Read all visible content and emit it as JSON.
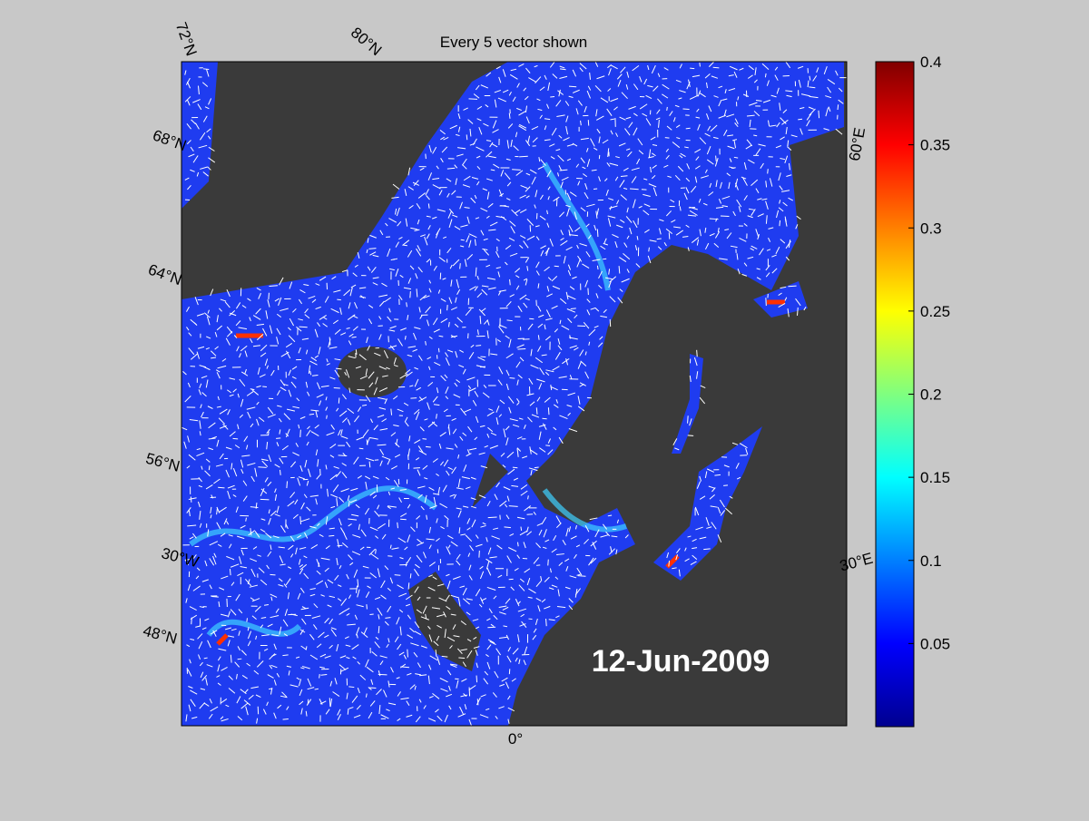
{
  "title": "Every 5 vector shown",
  "date_label": "12-Jun-2009",
  "map_labels": [
    "72°N",
    "80°N",
    "68°N",
    "64°N",
    "56°N",
    "30°W",
    "48°N",
    "0°",
    "30°E",
    "60°E"
  ],
  "colorbar": {
    "ylim": [
      0,
      0.4
    ],
    "yticks": [
      0.05,
      0.1,
      0.15,
      0.2,
      0.25,
      0.3,
      0.35,
      0.4
    ]
  }
}
